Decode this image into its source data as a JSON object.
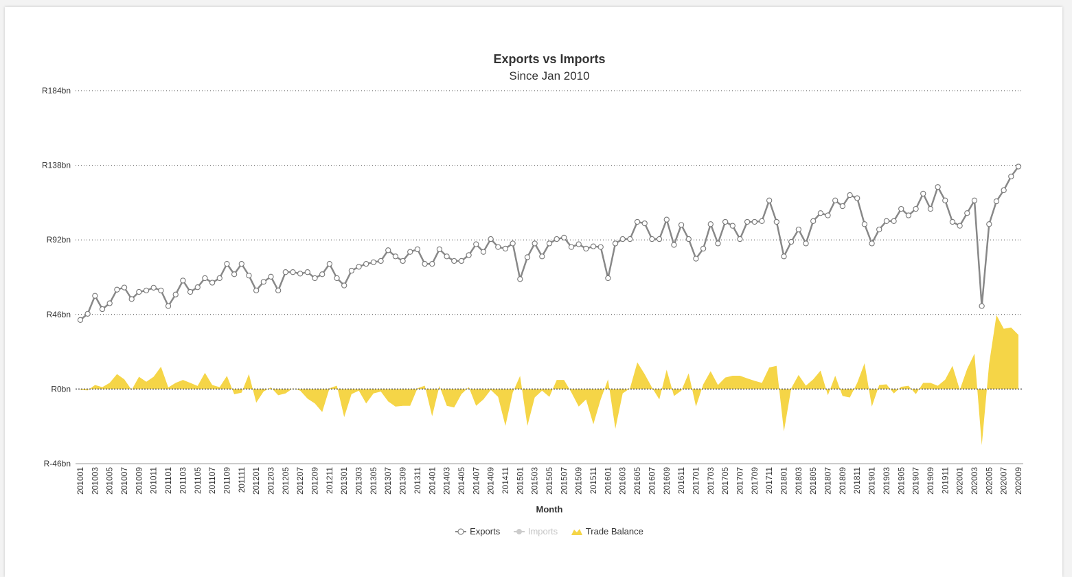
{
  "title": "Exports vs Imports",
  "subtitle": "Since Jan 2010",
  "colors": {
    "exports": "#888888",
    "imports": "#cccccc",
    "balance": "#f5d547",
    "grid": "#444444"
  },
  "chart_data": {
    "type": "line",
    "title": "Exports vs Imports",
    "subtitle": "Since Jan 2010",
    "xlabel": "Month",
    "ylabel": "",
    "ylim": [
      -46,
      184
    ],
    "y_ticks": [
      "R184bn",
      "R138bn",
      "R92bn",
      "R46bn",
      "R0bn",
      "R-46bn"
    ],
    "y_tick_values": [
      184,
      138,
      92,
      46,
      0,
      -46
    ],
    "x_tick_labels": [
      "201001",
      "201003",
      "201005",
      "201007",
      "201009",
      "201011",
      "201101",
      "201103",
      "201105",
      "201107",
      "201109",
      "201111",
      "201201",
      "201203",
      "201205",
      "201207",
      "201209",
      "201211",
      "201301",
      "201303",
      "201305",
      "201307",
      "201309",
      "201311",
      "201401",
      "201403",
      "201405",
      "201407",
      "201409",
      "201411",
      "201501",
      "201503",
      "201505",
      "201507",
      "201509",
      "201511",
      "201601",
      "201603",
      "201605",
      "201607",
      "201609",
      "201611",
      "201701",
      "201703",
      "201705",
      "201707",
      "201709",
      "201711",
      "201801",
      "201803",
      "201805",
      "201807",
      "201809",
      "201811",
      "201901",
      "201903",
      "201905",
      "201907",
      "201909",
      "201911",
      "202001",
      "202003",
      "202005",
      "202007",
      "202009"
    ],
    "x_tick_every": 2,
    "grid": true,
    "legend": "bottom-center",
    "series": [
      {
        "name": "Exports",
        "type": "line",
        "values": [
          42.6,
          46.4,
          57.5,
          49.3,
          52.9,
          61.3,
          62.6,
          55.5,
          59.9,
          60.8,
          62.5,
          60.8,
          51.2,
          58.3,
          66.9,
          59.9,
          62.8,
          68.4,
          65.6,
          68.4,
          77.2,
          70.8,
          77.2,
          70.0,
          60.8,
          66.1,
          69.3,
          60.8,
          72.1,
          72.1,
          71.2,
          72.1,
          68.4,
          70.8,
          77.2,
          68.4,
          63.9,
          73.0,
          75.4,
          77.2,
          78.2,
          79.0,
          85.6,
          81.8,
          79.0,
          84.6,
          86.2,
          77.2,
          77.2,
          86.2,
          81.8,
          79.0,
          79.0,
          82.6,
          89.3,
          84.6,
          92.5,
          87.6,
          86.6,
          89.8,
          67.8,
          81.3,
          89.8,
          81.8,
          89.8,
          92.5,
          93.4,
          87.6,
          89.3,
          86.6,
          88.0,
          87.6,
          68.4,
          89.8,
          92.5,
          92.5,
          103.1,
          102.2,
          92.5,
          92.5,
          104.5,
          88.9,
          101.2,
          92.5,
          80.4,
          86.6,
          101.7,
          89.8,
          103.1,
          100.7,
          92.5,
          103.1,
          103.1,
          103.6,
          116.3,
          103.1,
          81.8,
          90.8,
          98.4,
          89.8,
          103.6,
          108.5,
          107.1,
          116.3,
          112.8,
          119.6,
          117.7,
          101.7,
          89.8,
          98.4,
          103.6,
          103.6,
          111.1,
          107.1,
          111.1,
          120.5,
          111.1,
          124.6,
          116.3,
          103.1,
          100.7,
          108.5,
          116.3,
          51.2,
          101.7,
          115.8,
          122.6,
          131.1,
          137.2
        ]
      },
      {
        "name": "Imports",
        "type": "line",
        "visible": false,
        "values": []
      },
      {
        "name": "Trade Balance",
        "type": "area",
        "values": [
          -0.5,
          -0.8,
          2.5,
          1.2,
          3.8,
          9.2,
          6.0,
          -0.5,
          7.6,
          4.5,
          7.6,
          13.8,
          1.0,
          3.8,
          5.6,
          3.8,
          1.9,
          10.0,
          2.5,
          1.2,
          8.1,
          -3.2,
          -2.2,
          9.2,
          -8.4,
          -1.5,
          1.0,
          -3.8,
          -2.7,
          0.5,
          -1.0,
          -5.9,
          -8.9,
          -14.2,
          0.5,
          2.1,
          -17.3,
          -3.1,
          -1.0,
          -8.9,
          -2.7,
          -1.5,
          -7.6,
          -10.8,
          -10.3,
          -10.3,
          0.5,
          2.1,
          -16.8,
          1.9,
          -10.3,
          -11.4,
          -3.1,
          1.2,
          -10.3,
          -6.4,
          -0.5,
          -4.8,
          -22.7,
          -2.1,
          8.1,
          -22.7,
          -5.2,
          -1.0,
          -4.8,
          5.6,
          5.6,
          -2.1,
          -10.8,
          -6.4,
          -21.7,
          -6.4,
          6.0,
          -24.5,
          -2.7,
          0.5,
          16.5,
          9.2,
          0.9,
          -6.4,
          11.9,
          -4.3,
          -1.0,
          9.7,
          -10.8,
          3.0,
          11.0,
          2.5,
          7.1,
          8.2,
          8.2,
          6.6,
          5.1,
          3.8,
          13.3,
          14.3,
          -26.1,
          0.5,
          8.7,
          2.1,
          6.0,
          11.4,
          -3.8,
          8.2,
          -4.3,
          -5.2,
          3.8,
          15.9,
          -10.8,
          2.5,
          2.9,
          -2.7,
          1.4,
          2.0,
          -3.1,
          3.8,
          3.8,
          2.0,
          5.8,
          14.3,
          -0.5,
          12.4,
          21.8,
          -34.6,
          15.5,
          45.6,
          37.2,
          38.0,
          33.4
        ]
      }
    ]
  },
  "legend_items": {
    "exports": "Exports",
    "imports": "Imports",
    "balance": "Trade Balance"
  }
}
